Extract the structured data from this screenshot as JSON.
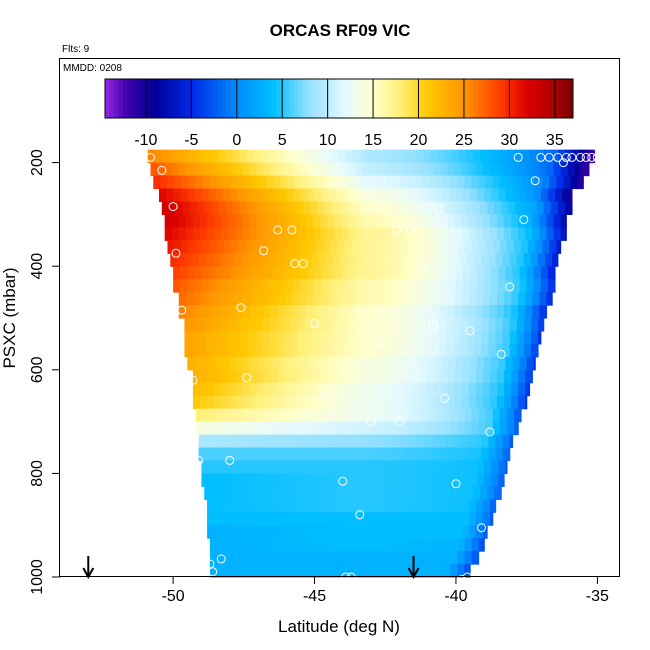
{
  "chart_data": {
    "type": "heatmap",
    "title": "ORCAS RF09 VIC",
    "notes": [
      "Flts: 9",
      "MMDD: 0208"
    ],
    "xlabel": "Latitude (deg N)",
    "ylabel": "PSXC (mbar)",
    "xlim": [
      -54,
      -34.2
    ],
    "ylim": [
      1000,
      0
    ],
    "xticks": [
      -50,
      -45,
      -40,
      -35
    ],
    "xtick_labels": [
      "-50",
      "-45",
      "-40",
      "-35"
    ],
    "yticks": [
      200,
      400,
      600,
      800,
      1000
    ],
    "ytick_labels": [
      "200",
      "400",
      "600",
      "800",
      "1000"
    ],
    "colorbar": {
      "range": [
        -14.5,
        37
      ],
      "ticks": [
        -10,
        -5,
        0,
        5,
        10,
        15,
        20,
        25,
        30,
        35
      ],
      "tick_labels": [
        "-10",
        "-5",
        "0",
        "5",
        "10",
        "15",
        "20",
        "25",
        "30",
        "35"
      ]
    },
    "pressure_rows": [
      {
        "p": 187.5,
        "lat_min": -50.9,
        "lat_max": -35.1
      },
      {
        "p": 212.5,
        "lat_min": -50.8,
        "lat_max": -35.3
      },
      {
        "p": 237.5,
        "lat_min": -50.7,
        "lat_max": -35.5
      },
      {
        "p": 262.5,
        "lat_min": -50.5,
        "lat_max": -35.9
      },
      {
        "p": 287.5,
        "lat_min": -50.4,
        "lat_max": -35.9
      },
      {
        "p": 312.5,
        "lat_min": -50.3,
        "lat_max": -36.1
      },
      {
        "p": 337.5,
        "lat_min": -50.3,
        "lat_max": -36.1
      },
      {
        "p": 362.5,
        "lat_min": -50.2,
        "lat_max": -36.3
      },
      {
        "p": 387.5,
        "lat_min": -50.1,
        "lat_max": -36.4
      },
      {
        "p": 412.5,
        "lat_min": -50.0,
        "lat_max": -36.5
      },
      {
        "p": 437.5,
        "lat_min": -50.0,
        "lat_max": -36.5
      },
      {
        "p": 462.5,
        "lat_min": -49.8,
        "lat_max": -36.6
      },
      {
        "p": 487.5,
        "lat_min": -49.8,
        "lat_max": -36.8
      },
      {
        "p": 512.5,
        "lat_min": -49.6,
        "lat_max": -36.9
      },
      {
        "p": 537.5,
        "lat_min": -49.6,
        "lat_max": -37.0
      },
      {
        "p": 562.5,
        "lat_min": -49.6,
        "lat_max": -37.1
      },
      {
        "p": 587.5,
        "lat_min": -49.5,
        "lat_max": -37.2
      },
      {
        "p": 612.5,
        "lat_min": -49.3,
        "lat_max": -37.3
      },
      {
        "p": 637.5,
        "lat_min": -49.3,
        "lat_max": -37.4
      },
      {
        "p": 662.5,
        "lat_min": -49.3,
        "lat_max": -37.5
      },
      {
        "p": 687.5,
        "lat_min": -49.2,
        "lat_max": -37.7
      },
      {
        "p": 712.5,
        "lat_min": -49.2,
        "lat_max": -37.8
      },
      {
        "p": 737.5,
        "lat_min": -49.1,
        "lat_max": -38.0
      },
      {
        "p": 762.5,
        "lat_min": -49.1,
        "lat_max": -38.1
      },
      {
        "p": 787.5,
        "lat_min": -49.0,
        "lat_max": -38.2
      },
      {
        "p": 812.5,
        "lat_min": -49.0,
        "lat_max": -38.3
      },
      {
        "p": 837.5,
        "lat_min": -48.9,
        "lat_max": -38.4
      },
      {
        "p": 862.5,
        "lat_min": -48.8,
        "lat_max": -38.6
      },
      {
        "p": 887.5,
        "lat_min": -48.8,
        "lat_max": -38.7
      },
      {
        "p": 912.5,
        "lat_min": -48.8,
        "lat_max": -38.9
      },
      {
        "p": 937.5,
        "lat_min": -48.7,
        "lat_max": -39.0
      },
      {
        "p": 962.5,
        "lat_min": -48.7,
        "lat_max": -39.2
      },
      {
        "p": 987.5,
        "lat_min": -48.7,
        "lat_max": -39.5
      }
    ],
    "field_profile": [
      {
        "p": 187.5,
        "start": 26,
        "mid": 9,
        "end": -6
      },
      {
        "p": 212.5,
        "start": 28,
        "mid": 10,
        "end": -6
      },
      {
        "p": 237.5,
        "start": 30,
        "mid": 12,
        "end": -5
      },
      {
        "p": 262.5,
        "start": 32,
        "mid": 14,
        "end": -4
      },
      {
        "p": 287.5,
        "start": 33,
        "mid": 15,
        "end": -3
      },
      {
        "p": 312.5,
        "start": 33,
        "mid": 16,
        "end": -2
      },
      {
        "p": 337.5,
        "start": 32,
        "mid": 17,
        "end": -1
      },
      {
        "p": 362.5,
        "start": 31,
        "mid": 17,
        "end": 0
      },
      {
        "p": 387.5,
        "start": 30,
        "mid": 17,
        "end": 0
      },
      {
        "p": 412.5,
        "start": 29,
        "mid": 17,
        "end": 0
      },
      {
        "p": 437.5,
        "start": 28,
        "mid": 16,
        "end": 1
      },
      {
        "p": 462.5,
        "start": 27,
        "mid": 16,
        "end": 1
      },
      {
        "p": 487.5,
        "start": 26,
        "mid": 15,
        "end": 1
      },
      {
        "p": 512.5,
        "start": 25,
        "mid": 15,
        "end": 2
      },
      {
        "p": 537.5,
        "start": 24,
        "mid": 15,
        "end": 2
      },
      {
        "p": 562.5,
        "start": 24,
        "mid": 15,
        "end": 2
      },
      {
        "p": 587.5,
        "start": 23,
        "mid": 14,
        "end": 2
      },
      {
        "p": 612.5,
        "start": 23,
        "mid": 14,
        "end": 2
      },
      {
        "p": 637.5,
        "start": 22,
        "mid": 13,
        "end": 2
      },
      {
        "p": 662.5,
        "start": 21,
        "mid": 13,
        "end": 2
      },
      {
        "p": 687.5,
        "start": 18,
        "mid": 13,
        "end": 3
      },
      {
        "p": 712.5,
        "start": 14,
        "mid": 11,
        "end": 4
      },
      {
        "p": 737.5,
        "start": 9,
        "mid": 8,
        "end": 4
      },
      {
        "p": 762.5,
        "start": 6,
        "mid": 6,
        "end": 4
      },
      {
        "p": 787.5,
        "start": 5,
        "mid": 5,
        "end": 4
      },
      {
        "p": 812.5,
        "start": 4,
        "mid": 5,
        "end": 4
      },
      {
        "p": 837.5,
        "start": 4,
        "mid": 5,
        "end": 4
      },
      {
        "p": 862.5,
        "start": 4,
        "mid": 5,
        "end": 4
      },
      {
        "p": 887.5,
        "start": 4,
        "mid": 4,
        "end": 4
      },
      {
        "p": 912.5,
        "start": 3,
        "mid": 4,
        "end": 4
      },
      {
        "p": 937.5,
        "start": 3,
        "mid": 4,
        "end": 3
      },
      {
        "p": 962.5,
        "start": 3,
        "mid": 3,
        "end": 3
      },
      {
        "p": 987.5,
        "start": 3,
        "mid": 3,
        "end": 3
      }
    ],
    "sample_points": [
      {
        "lat": -50.8,
        "p": 190
      },
      {
        "lat": -50.4,
        "p": 215
      },
      {
        "lat": -50.0,
        "p": 285
      },
      {
        "lat": -49.9,
        "p": 375
      },
      {
        "lat": -49.7,
        "p": 485
      },
      {
        "lat": -49.3,
        "p": 620
      },
      {
        "lat": -49.1,
        "p": 775
      },
      {
        "lat": -48.7,
        "p": 975
      },
      {
        "lat": -48.6,
        "p": 990
      },
      {
        "lat": -48.3,
        "p": 965
      },
      {
        "lat": -48.0,
        "p": 775
      },
      {
        "lat": -47.6,
        "p": 480
      },
      {
        "lat": -47.4,
        "p": 615
      },
      {
        "lat": -46.8,
        "p": 370
      },
      {
        "lat": -46.3,
        "p": 330
      },
      {
        "lat": -45.8,
        "p": 330
      },
      {
        "lat": -45.4,
        "p": 395
      },
      {
        "lat": -45.0,
        "p": 510
      },
      {
        "lat": -44.6,
        "p": 645
      },
      {
        "lat": -44.0,
        "p": 815
      },
      {
        "lat": -43.9,
        "p": 1000
      },
      {
        "lat": -43.7,
        "p": 1000
      },
      {
        "lat": -43.4,
        "p": 880
      },
      {
        "lat": -43.0,
        "p": 700
      },
      {
        "lat": -42.7,
        "p": 550
      },
      {
        "lat": -42.1,
        "p": 330
      },
      {
        "lat": -41.6,
        "p": 330
      },
      {
        "lat": -41.2,
        "p": 400
      },
      {
        "lat": -40.8,
        "p": 515
      },
      {
        "lat": -40.4,
        "p": 655
      },
      {
        "lat": -40.0,
        "p": 820
      },
      {
        "lat": -39.8,
        "p": 1005
      },
      {
        "lat": -39.6,
        "p": 1000
      },
      {
        "lat": -39.5,
        "p": 525
      },
      {
        "lat": -39.1,
        "p": 905
      },
      {
        "lat": -38.8,
        "p": 720
      },
      {
        "lat": -38.4,
        "p": 570
      },
      {
        "lat": -38.1,
        "p": 440
      },
      {
        "lat": -37.8,
        "p": 190
      },
      {
        "lat": -37.6,
        "p": 310
      },
      {
        "lat": -37.2,
        "p": 235
      },
      {
        "lat": -37.0,
        "p": 190
      },
      {
        "lat": -36.7,
        "p": 190
      },
      {
        "lat": -36.4,
        "p": 190
      },
      {
        "lat": -36.1,
        "p": 190
      },
      {
        "lat": -35.9,
        "p": 190
      },
      {
        "lat": -35.6,
        "p": 190
      },
      {
        "lat": -35.4,
        "p": 190
      },
      {
        "lat": -35.2,
        "p": 190
      },
      {
        "lat": -35.0,
        "p": 190
      },
      {
        "lat": -36.2,
        "p": 200
      },
      {
        "lat": -45.7,
        "p": 395
      },
      {
        "lat": -42.0,
        "p": 700
      },
      {
        "lat": -40.6,
        "p": 290
      }
    ],
    "markers": [
      {
        "lat": -53.0,
        "type": "down-arrow"
      },
      {
        "lat": -41.5,
        "type": "down-arrow"
      }
    ]
  }
}
